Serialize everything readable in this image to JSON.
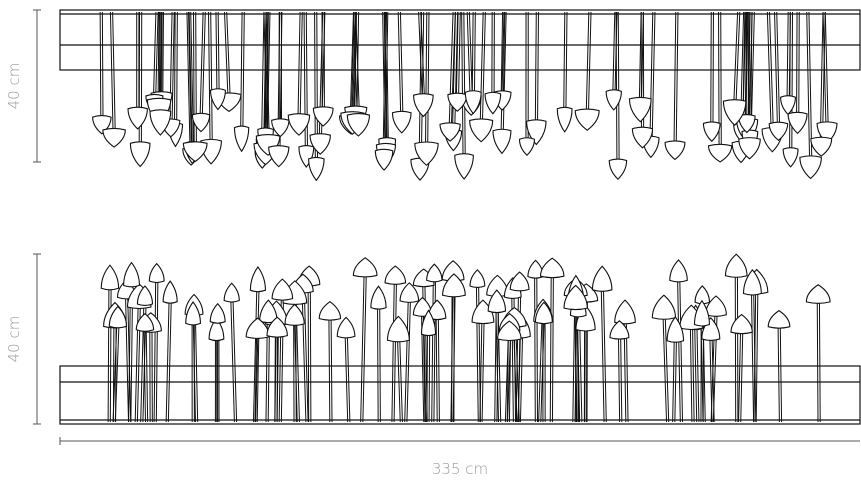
{
  "dimensions": {
    "height_top": "40 cm",
    "height_bottom": "40 cm",
    "width": "335 cm"
  },
  "views": [
    {
      "name": "pendant-view",
      "orientation": "down"
    },
    {
      "name": "upright-view",
      "orientation": "up"
    }
  ],
  "colors": {
    "line": "#111111",
    "dimension_text": "#9a9a9a",
    "background": "#ffffff"
  }
}
